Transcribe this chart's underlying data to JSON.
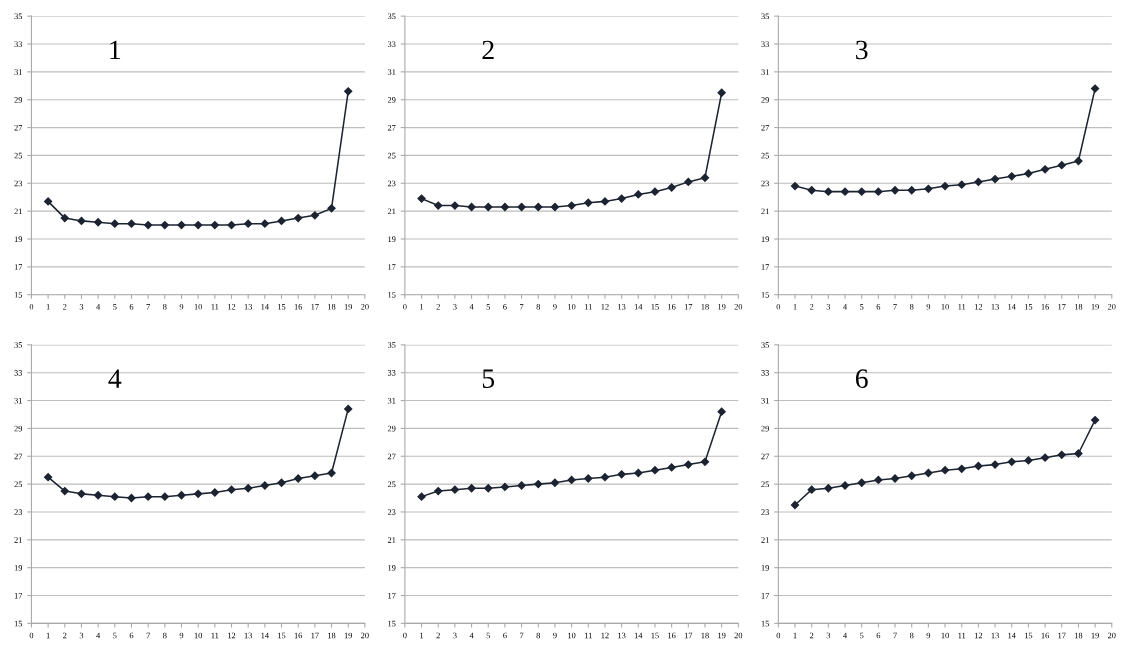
{
  "chart_data": [
    {
      "type": "line",
      "annotations": [
        "1"
      ],
      "x": [
        1,
        2,
        3,
        4,
        5,
        6,
        7,
        8,
        9,
        10,
        11,
        12,
        13,
        14,
        15,
        16,
        17,
        18,
        19
      ],
      "series": [
        {
          "color": "#1c2331",
          "values": [
            21.7,
            20.5,
            20.3,
            20.2,
            20.1,
            20.1,
            20.0,
            20.0,
            20.0,
            20.0,
            20.0,
            20.0,
            20.1,
            20.1,
            20.3,
            20.5,
            20.7,
            21.2,
            29.6
          ]
        }
      ],
      "xlim": [
        0,
        20
      ],
      "xticks": [
        0,
        1,
        2,
        3,
        4,
        5,
        6,
        7,
        8,
        9,
        10,
        11,
        12,
        13,
        14,
        15,
        16,
        17,
        18,
        19,
        20
      ],
      "ylim": [
        15,
        35
      ],
      "yticks": [
        15,
        17,
        19,
        21,
        23,
        25,
        27,
        29,
        31,
        33,
        35
      ],
      "grid": "y",
      "marker": "diamond",
      "line_style": "solid"
    },
    {
      "type": "line",
      "annotations": [
        "2"
      ],
      "x": [
        1,
        2,
        3,
        4,
        5,
        6,
        7,
        8,
        9,
        10,
        11,
        12,
        13,
        14,
        15,
        16,
        17,
        18,
        19
      ],
      "series": [
        {
          "color": "#1c2331",
          "values": [
            21.9,
            21.4,
            21.4,
            21.3,
            21.3,
            21.3,
            21.3,
            21.3,
            21.3,
            21.4,
            21.6,
            21.7,
            21.9,
            22.2,
            22.4,
            22.7,
            23.1,
            23.4,
            29.5
          ]
        }
      ],
      "xlim": [
        0,
        20
      ],
      "xticks": [
        0,
        1,
        2,
        3,
        4,
        5,
        6,
        7,
        8,
        9,
        10,
        11,
        12,
        13,
        14,
        15,
        16,
        17,
        18,
        19,
        20
      ],
      "ylim": [
        15,
        35
      ],
      "yticks": [
        15,
        17,
        19,
        21,
        23,
        25,
        27,
        29,
        31,
        33,
        35
      ],
      "grid": "y",
      "marker": "diamond",
      "line_style": "solid"
    },
    {
      "type": "line",
      "annotations": [
        "3"
      ],
      "x": [
        1,
        2,
        3,
        4,
        5,
        6,
        7,
        8,
        9,
        10,
        11,
        12,
        13,
        14,
        15,
        16,
        17,
        18,
        19
      ],
      "series": [
        {
          "color": "#1c2331",
          "values": [
            22.8,
            22.5,
            22.4,
            22.4,
            22.4,
            22.4,
            22.5,
            22.5,
            22.6,
            22.8,
            22.9,
            23.1,
            23.3,
            23.5,
            23.7,
            24.0,
            24.3,
            24.6,
            29.8
          ]
        }
      ],
      "xlim": [
        0,
        20
      ],
      "xticks": [
        0,
        1,
        2,
        3,
        4,
        5,
        6,
        7,
        8,
        9,
        10,
        11,
        12,
        13,
        14,
        15,
        16,
        17,
        18,
        19,
        20
      ],
      "ylim": [
        15,
        35
      ],
      "yticks": [
        15,
        17,
        19,
        21,
        23,
        25,
        27,
        29,
        31,
        33,
        35
      ],
      "grid": "y",
      "marker": "diamond",
      "line_style": "solid"
    },
    {
      "type": "line",
      "annotations": [
        "4"
      ],
      "x": [
        1,
        2,
        3,
        4,
        5,
        6,
        7,
        8,
        9,
        10,
        11,
        12,
        13,
        14,
        15,
        16,
        17,
        18,
        19
      ],
      "series": [
        {
          "color": "#1c2331",
          "values": [
            25.5,
            24.5,
            24.3,
            24.2,
            24.1,
            24.0,
            24.1,
            24.1,
            24.2,
            24.3,
            24.4,
            24.6,
            24.7,
            24.9,
            25.1,
            25.4,
            25.6,
            25.8,
            30.4
          ]
        }
      ],
      "xlim": [
        0,
        20
      ],
      "xticks": [
        0,
        1,
        2,
        3,
        4,
        5,
        6,
        7,
        8,
        9,
        10,
        11,
        12,
        13,
        14,
        15,
        16,
        17,
        18,
        19,
        20
      ],
      "ylim": [
        15,
        35
      ],
      "yticks": [
        15,
        17,
        19,
        21,
        23,
        25,
        27,
        29,
        31,
        33,
        35
      ],
      "grid": "y",
      "marker": "diamond",
      "line_style": "solid"
    },
    {
      "type": "line",
      "annotations": [
        "5"
      ],
      "x": [
        1,
        2,
        3,
        4,
        5,
        6,
        7,
        8,
        9,
        10,
        11,
        12,
        13,
        14,
        15,
        16,
        17,
        18,
        19
      ],
      "series": [
        {
          "color": "#1c2331",
          "values": [
            24.1,
            24.5,
            24.6,
            24.7,
            24.7,
            24.8,
            24.9,
            25.0,
            25.1,
            25.3,
            25.4,
            25.5,
            25.7,
            25.8,
            26.0,
            26.2,
            26.4,
            26.6,
            30.2
          ]
        }
      ],
      "xlim": [
        0,
        20
      ],
      "xticks": [
        0,
        1,
        2,
        3,
        4,
        5,
        6,
        7,
        8,
        9,
        10,
        11,
        12,
        13,
        14,
        15,
        16,
        17,
        18,
        19,
        20
      ],
      "ylim": [
        15,
        35
      ],
      "yticks": [
        15,
        17,
        19,
        21,
        23,
        25,
        27,
        29,
        31,
        33,
        35
      ],
      "grid": "y",
      "marker": "diamond",
      "line_style": "solid"
    },
    {
      "type": "line",
      "annotations": [
        "6"
      ],
      "x": [
        1,
        2,
        3,
        4,
        5,
        6,
        7,
        8,
        9,
        10,
        11,
        12,
        13,
        14,
        15,
        16,
        17,
        18,
        19
      ],
      "series": [
        {
          "color": "#1c2331",
          "values": [
            23.5,
            24.6,
            24.7,
            24.9,
            25.1,
            25.3,
            25.4,
            25.6,
            25.8,
            26.0,
            26.1,
            26.3,
            26.4,
            26.6,
            26.7,
            26.9,
            27.1,
            27.2,
            29.6
          ]
        }
      ],
      "xlim": [
        0,
        20
      ],
      "xticks": [
        0,
        1,
        2,
        3,
        4,
        5,
        6,
        7,
        8,
        9,
        10,
        11,
        12,
        13,
        14,
        15,
        16,
        17,
        18,
        19,
        20
      ],
      "ylim": [
        15,
        35
      ],
      "yticks": [
        15,
        17,
        19,
        21,
        23,
        25,
        27,
        29,
        31,
        33,
        35
      ],
      "grid": "y",
      "marker": "diamond",
      "line_style": "solid"
    }
  ]
}
